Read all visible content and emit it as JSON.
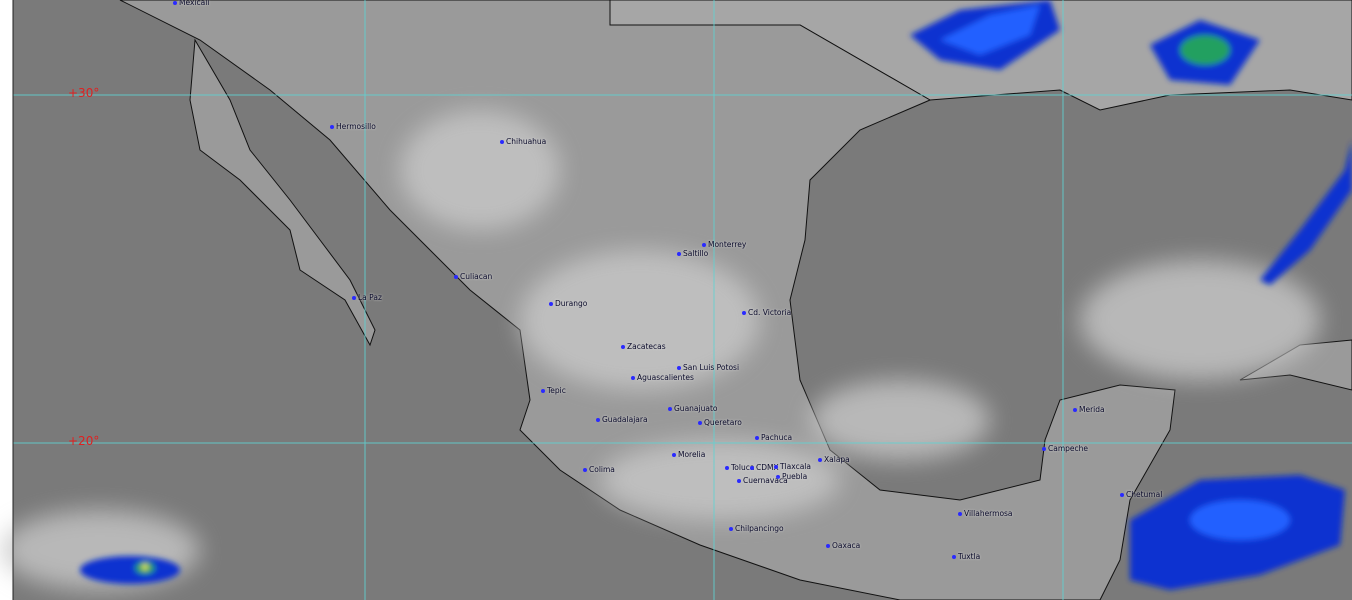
{
  "map": {
    "type": "infrared satellite image",
    "grid_color": "#5fd3d3",
    "label_color": "#e02020",
    "latitude_labels": [
      "+30°",
      "+20°"
    ],
    "cities": [
      "Mexicali",
      "Hermosillo",
      "Chihuahua",
      "Culiacan",
      "La Paz",
      "Durango",
      "Saltillo",
      "Monterrey",
      "Cd. Victoria",
      "Zacatecas",
      "San Luis Potosi",
      "Aguascalientes",
      "Tepic",
      "Guadalajara",
      "Guanajuato",
      "Queretaro",
      "Pachuca",
      "Morelia",
      "Colima",
      "Toluca",
      "CDMX",
      "Tlaxcala",
      "Puebla",
      "Cuernavaca",
      "Xalapa",
      "Chilpancingo",
      "Oaxaca",
      "Villahermosa",
      "Tuxtla",
      "Merida",
      "Campeche",
      "Chetumal"
    ],
    "cloud_colors": [
      "#1030d0",
      "#2060ff",
      "#20a060",
      "#f0f060"
    ]
  }
}
